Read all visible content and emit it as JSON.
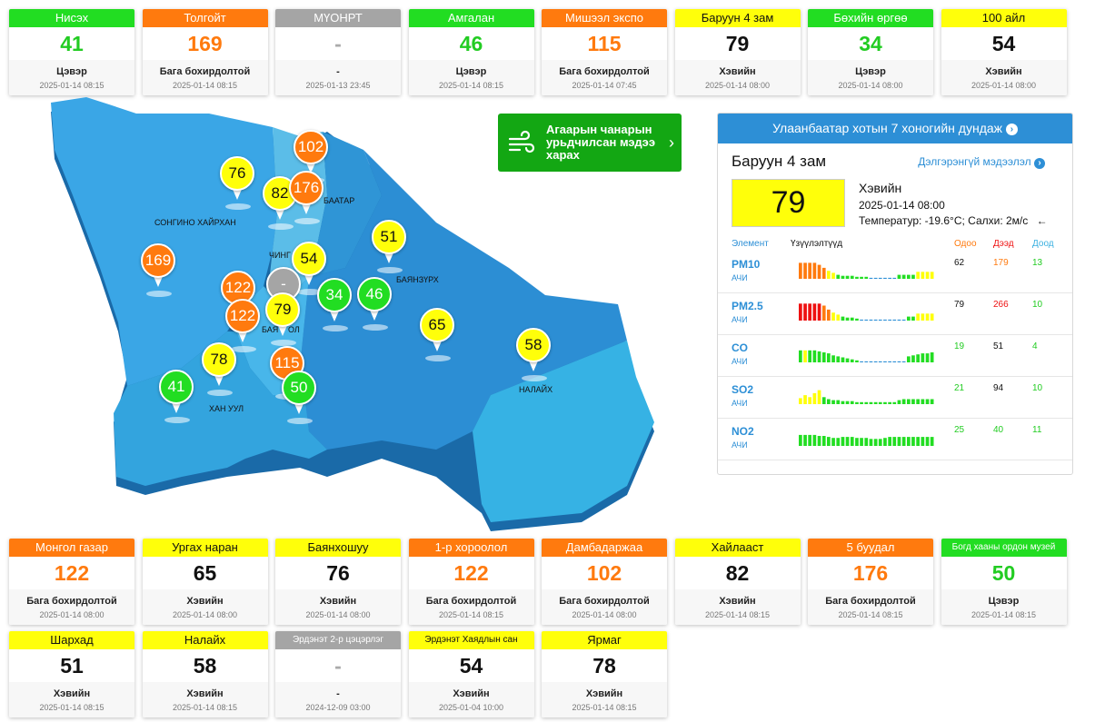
{
  "top_cards": [
    {
      "name": "Нисэх",
      "value": "41",
      "level": "Цэвэр",
      "time": "2025-01-14 08:15",
      "color": "green"
    },
    {
      "name": "Толгойт",
      "value": "169",
      "level": "Бага бохирдолтой",
      "time": "2025-01-14 08:15",
      "color": "orange"
    },
    {
      "name": "МҮОНРТ",
      "value": "-",
      "level": "-",
      "time": "2025-01-13 23:45",
      "color": "gray"
    },
    {
      "name": "Амгалан",
      "value": "46",
      "level": "Цэвэр",
      "time": "2025-01-14 08:15",
      "color": "green"
    },
    {
      "name": "Мишээл экспо",
      "value": "115",
      "level": "Бага бохирдолтой",
      "time": "2025-01-14 07:45",
      "color": "orange"
    },
    {
      "name": "Баруун 4 зам",
      "value": "79",
      "level": "Хэвийн",
      "time": "2025-01-14 08:00",
      "color": "yellow"
    },
    {
      "name": "Бөхийн өргөө",
      "value": "34",
      "level": "Цэвэр",
      "time": "2025-01-14 08:00",
      "color": "green"
    },
    {
      "name": "100 айл",
      "value": "54",
      "level": "Хэвийн",
      "time": "2025-01-14 08:00",
      "color": "yellow"
    }
  ],
  "bottom_cards_row1": [
    {
      "name": "Монгол газар",
      "value": "122",
      "level": "Бага бохирдолтой",
      "time": "2025-01-14 08:00",
      "color": "orange"
    },
    {
      "name": "Ургах наран",
      "value": "65",
      "level": "Хэвийн",
      "time": "2025-01-14 08:00",
      "color": "yellow"
    },
    {
      "name": "Баянхошуу",
      "value": "76",
      "level": "Хэвийн",
      "time": "2025-01-14 08:00",
      "color": "yellow"
    },
    {
      "name": "1-р хороолол",
      "value": "122",
      "level": "Бага бохирдолтой",
      "time": "2025-01-14 08:15",
      "color": "orange"
    },
    {
      "name": "Дамбадаржаа",
      "value": "102",
      "level": "Бага бохирдолтой",
      "time": "2025-01-14 08:00",
      "color": "orange"
    },
    {
      "name": "Хайлааст",
      "value": "82",
      "level": "Хэвийн",
      "time": "2025-01-14 08:15",
      "color": "yellow"
    },
    {
      "name": "5 буудал",
      "value": "176",
      "level": "Бага бохирдолтой",
      "time": "2025-01-14 08:15",
      "color": "orange"
    },
    {
      "name": "Богд хааны ордон музей",
      "value": "50",
      "level": "Цэвэр",
      "time": "2025-01-14 08:15",
      "color": "green"
    }
  ],
  "bottom_cards_row2": [
    {
      "name": "Шархад",
      "value": "51",
      "level": "Хэвийн",
      "time": "2025-01-14 08:15",
      "color": "yellow"
    },
    {
      "name": "Налайх",
      "value": "58",
      "level": "Хэвийн",
      "time": "2025-01-14 08:15",
      "color": "yellow"
    },
    {
      "name": "Эрдэнэт 2-р цэцэрлэг",
      "value": "-",
      "level": "-",
      "time": "2024-12-09 03:00",
      "color": "gray"
    },
    {
      "name": "Эрдэнэт Хаядлын сан",
      "value": "54",
      "level": "Хэвийн",
      "time": "2025-01-04 10:00",
      "color": "yellow"
    },
    {
      "name": "Ярмаг",
      "value": "78",
      "level": "Хэвийн",
      "time": "2025-01-14 08:15",
      "color": "yellow"
    }
  ],
  "map": {
    "districts": [
      "СОНГИНО ХАЙРХАН",
      "ЧИНГ",
      "БААТАР",
      "БАЯНЗҮРХ",
      "НАЛАЙХ",
      "ХАН УУЛ",
      "БАЯ",
      "ОЛ"
    ],
    "pins": [
      {
        "value": "102",
        "color": "orange"
      },
      {
        "value": "76",
        "color": "yellow"
      },
      {
        "value": "82",
        "color": "yellow"
      },
      {
        "value": "176",
        "color": "orange"
      },
      {
        "value": "54",
        "color": "yellow"
      },
      {
        "value": "51",
        "color": "yellow"
      },
      {
        "value": "169",
        "color": "orange"
      },
      {
        "value": "122",
        "color": "orange"
      },
      {
        "value": "-",
        "color": "gray"
      },
      {
        "value": "34",
        "color": "green"
      },
      {
        "value": "46",
        "color": "green"
      },
      {
        "value": "122",
        "color": "orange"
      },
      {
        "value": "79",
        "color": "yellow"
      },
      {
        "value": "65",
        "color": "yellow"
      },
      {
        "value": "58",
        "color": "yellow"
      },
      {
        "value": "78",
        "color": "yellow"
      },
      {
        "value": "115",
        "color": "orange"
      },
      {
        "value": "41",
        "color": "green"
      },
      {
        "value": "50",
        "color": "green"
      }
    ]
  },
  "forecast_button": {
    "label": "Агаарын чанарын урьдчилсан мэдээ харах",
    "icon": "wind-icon"
  },
  "panel": {
    "header": "Улаанбаатар хотын 7 хоногийн дундаж",
    "station": "Баруун 4 зам",
    "details_link": "Дэлгэрэнгүй мэдээлэл",
    "aqi": "79",
    "aqi_color": "#ffff0a",
    "condition": "Хэвийн",
    "time": "2025-01-14 08:00",
    "weather": "Температур: -19.6°C; Салхи: 2м/с",
    "columns": {
      "element": "Элемент",
      "trend": "Үзүүлэлтүүд",
      "now": "Одоо",
      "max": "Дээд",
      "min": "Доод"
    },
    "pollutants": [
      {
        "name": "PM10",
        "sub": "АЧИ",
        "now": "62",
        "max": "179",
        "min": "13",
        "max_color": "#ff7a0e",
        "min_color": "#22cc22",
        "bars": [
          {
            "v": 0.8,
            "c": "#ff7a0e"
          },
          {
            "v": 0.8,
            "c": "#ff7a0e"
          },
          {
            "v": 0.8,
            "c": "#ff7a0e"
          },
          {
            "v": 0.8,
            "c": "#ff7a0e"
          },
          {
            "v": 0.7,
            "c": "#ff7a0e"
          },
          {
            "v": 0.55,
            "c": "#ff7a0e"
          },
          {
            "v": 0.4,
            "c": "#ffff0a"
          },
          {
            "v": 0.3,
            "c": "#ffff0a"
          },
          {
            "v": 0.2,
            "c": "#22dd22"
          },
          {
            "v": 0.15,
            "c": "#22dd22"
          },
          {
            "v": 0.15,
            "c": "#22dd22"
          },
          {
            "v": 0.15,
            "c": "#22dd22"
          },
          {
            "v": 0.1,
            "c": "#22dd22"
          },
          {
            "v": 0.1,
            "c": "#22dd22"
          },
          {
            "v": 0.1,
            "c": "#22dd22"
          },
          {
            "v": 0.05,
            "c": "#2d8fd6"
          },
          {
            "v": 0.05,
            "c": "#2d8fd6"
          },
          {
            "v": 0.05,
            "c": "#2d8fd6"
          },
          {
            "v": 0.05,
            "c": "#2d8fd6"
          },
          {
            "v": 0.05,
            "c": "#2d8fd6"
          },
          {
            "v": 0.05,
            "c": "#2d8fd6"
          },
          {
            "v": 0.2,
            "c": "#22dd22"
          },
          {
            "v": 0.2,
            "c": "#22dd22"
          },
          {
            "v": 0.2,
            "c": "#22dd22"
          },
          {
            "v": 0.2,
            "c": "#22dd22"
          },
          {
            "v": 0.35,
            "c": "#ffff0a"
          },
          {
            "v": 0.35,
            "c": "#ffff0a"
          },
          {
            "v": 0.35,
            "c": "#ffff0a"
          },
          {
            "v": 0.35,
            "c": "#ffff0a"
          }
        ]
      },
      {
        "name": "PM2.5",
        "sub": "АЧИ",
        "now": "79",
        "max": "266",
        "min": "10",
        "max_color": "#ee1111",
        "min_color": "#22cc22",
        "bars": [
          {
            "v": 0.85,
            "c": "#ee1111"
          },
          {
            "v": 0.85,
            "c": "#ee1111"
          },
          {
            "v": 0.85,
            "c": "#ee1111"
          },
          {
            "v": 0.85,
            "c": "#ee1111"
          },
          {
            "v": 0.85,
            "c": "#ee1111"
          },
          {
            "v": 0.75,
            "c": "#ff7a0e"
          },
          {
            "v": 0.55,
            "c": "#ff7a0e"
          },
          {
            "v": 0.4,
            "c": "#ffff0a"
          },
          {
            "v": 0.3,
            "c": "#ffff0a"
          },
          {
            "v": 0.2,
            "c": "#22dd22"
          },
          {
            "v": 0.15,
            "c": "#22dd22"
          },
          {
            "v": 0.15,
            "c": "#22dd22"
          },
          {
            "v": 0.1,
            "c": "#22dd22"
          },
          {
            "v": 0.05,
            "c": "#2d8fd6"
          },
          {
            "v": 0.05,
            "c": "#2d8fd6"
          },
          {
            "v": 0.05,
            "c": "#2d8fd6"
          },
          {
            "v": 0.05,
            "c": "#2d8fd6"
          },
          {
            "v": 0.05,
            "c": "#2d8fd6"
          },
          {
            "v": 0.05,
            "c": "#2d8fd6"
          },
          {
            "v": 0.05,
            "c": "#2d8fd6"
          },
          {
            "v": 0.05,
            "c": "#2d8fd6"
          },
          {
            "v": 0.05,
            "c": "#2d8fd6"
          },
          {
            "v": 0.05,
            "c": "#2d8fd6"
          },
          {
            "v": 0.2,
            "c": "#22dd22"
          },
          {
            "v": 0.2,
            "c": "#22dd22"
          },
          {
            "v": 0.35,
            "c": "#ffff0a"
          },
          {
            "v": 0.35,
            "c": "#ffff0a"
          },
          {
            "v": 0.35,
            "c": "#ffff0a"
          },
          {
            "v": 0.35,
            "c": "#ffff0a"
          }
        ]
      },
      {
        "name": "CO",
        "sub": "АЧИ",
        "now": "19",
        "max": "51",
        "min": "4",
        "now_color": "#22cc22",
        "max_color": "#111",
        "min_color": "#22cc22",
        "bars": [
          {
            "v": 0.6,
            "c": "#22dd22"
          },
          {
            "v": 0.6,
            "c": "#ffff0a"
          },
          {
            "v": 0.6,
            "c": "#22dd22"
          },
          {
            "v": 0.6,
            "c": "#22dd22"
          },
          {
            "v": 0.55,
            "c": "#22dd22"
          },
          {
            "v": 0.5,
            "c": "#22dd22"
          },
          {
            "v": 0.45,
            "c": "#22dd22"
          },
          {
            "v": 0.35,
            "c": "#22dd22"
          },
          {
            "v": 0.3,
            "c": "#22dd22"
          },
          {
            "v": 0.25,
            "c": "#22dd22"
          },
          {
            "v": 0.2,
            "c": "#22dd22"
          },
          {
            "v": 0.15,
            "c": "#22dd22"
          },
          {
            "v": 0.1,
            "c": "#22dd22"
          },
          {
            "v": 0.05,
            "c": "#2d8fd6"
          },
          {
            "v": 0.05,
            "c": "#2d8fd6"
          },
          {
            "v": 0.05,
            "c": "#2d8fd6"
          },
          {
            "v": 0.05,
            "c": "#2d8fd6"
          },
          {
            "v": 0.05,
            "c": "#2d8fd6"
          },
          {
            "v": 0.05,
            "c": "#2d8fd6"
          },
          {
            "v": 0.05,
            "c": "#2d8fd6"
          },
          {
            "v": 0.05,
            "c": "#2d8fd6"
          },
          {
            "v": 0.05,
            "c": "#2d8fd6"
          },
          {
            "v": 0.05,
            "c": "#2d8fd6"
          },
          {
            "v": 0.3,
            "c": "#22dd22"
          },
          {
            "v": 0.35,
            "c": "#22dd22"
          },
          {
            "v": 0.4,
            "c": "#22dd22"
          },
          {
            "v": 0.45,
            "c": "#22dd22"
          },
          {
            "v": 0.45,
            "c": "#22dd22"
          },
          {
            "v": 0.5,
            "c": "#22dd22"
          }
        ]
      },
      {
        "name": "SO2",
        "sub": "АЧИ",
        "now": "21",
        "max": "94",
        "min": "10",
        "now_color": "#22cc22",
        "max_color": "#111",
        "min_color": "#22cc22",
        "bars": [
          {
            "v": 0.3,
            "c": "#ffff0a"
          },
          {
            "v": 0.45,
            "c": "#ffff0a"
          },
          {
            "v": 0.35,
            "c": "#ffff0a"
          },
          {
            "v": 0.55,
            "c": "#ffff0a"
          },
          {
            "v": 0.7,
            "c": "#ffff0a"
          },
          {
            "v": 0.35,
            "c": "#22dd22"
          },
          {
            "v": 0.25,
            "c": "#22dd22"
          },
          {
            "v": 0.2,
            "c": "#22dd22"
          },
          {
            "v": 0.2,
            "c": "#22dd22"
          },
          {
            "v": 0.15,
            "c": "#22dd22"
          },
          {
            "v": 0.15,
            "c": "#22dd22"
          },
          {
            "v": 0.15,
            "c": "#22dd22"
          },
          {
            "v": 0.1,
            "c": "#22dd22"
          },
          {
            "v": 0.1,
            "c": "#22dd22"
          },
          {
            "v": 0.1,
            "c": "#22dd22"
          },
          {
            "v": 0.1,
            "c": "#22dd22"
          },
          {
            "v": 0.1,
            "c": "#22dd22"
          },
          {
            "v": 0.1,
            "c": "#22dd22"
          },
          {
            "v": 0.1,
            "c": "#22dd22"
          },
          {
            "v": 0.1,
            "c": "#22dd22"
          },
          {
            "v": 0.1,
            "c": "#22dd22"
          },
          {
            "v": 0.2,
            "c": "#22dd22"
          },
          {
            "v": 0.25,
            "c": "#22dd22"
          },
          {
            "v": 0.25,
            "c": "#22dd22"
          },
          {
            "v": 0.25,
            "c": "#22dd22"
          },
          {
            "v": 0.25,
            "c": "#22dd22"
          },
          {
            "v": 0.25,
            "c": "#22dd22"
          },
          {
            "v": 0.25,
            "c": "#22dd22"
          },
          {
            "v": 0.25,
            "c": "#22dd22"
          }
        ]
      },
      {
        "name": "NO2",
        "sub": "АЧИ",
        "now": "25",
        "max": "40",
        "min": "11",
        "now_color": "#22cc22",
        "max_color": "#22cc22",
        "min_color": "#22cc22",
        "bars": [
          {
            "v": 0.55,
            "c": "#22dd22"
          },
          {
            "v": 0.55,
            "c": "#22dd22"
          },
          {
            "v": 0.55,
            "c": "#22dd22"
          },
          {
            "v": 0.55,
            "c": "#22dd22"
          },
          {
            "v": 0.5,
            "c": "#22dd22"
          },
          {
            "v": 0.5,
            "c": "#22dd22"
          },
          {
            "v": 0.45,
            "c": "#22dd22"
          },
          {
            "v": 0.4,
            "c": "#22dd22"
          },
          {
            "v": 0.4,
            "c": "#22dd22"
          },
          {
            "v": 0.45,
            "c": "#22dd22"
          },
          {
            "v": 0.45,
            "c": "#22dd22"
          },
          {
            "v": 0.45,
            "c": "#22dd22"
          },
          {
            "v": 0.4,
            "c": "#22dd22"
          },
          {
            "v": 0.4,
            "c": "#22dd22"
          },
          {
            "v": 0.4,
            "c": "#22dd22"
          },
          {
            "v": 0.35,
            "c": "#22dd22"
          },
          {
            "v": 0.35,
            "c": "#22dd22"
          },
          {
            "v": 0.35,
            "c": "#22dd22"
          },
          {
            "v": 0.4,
            "c": "#22dd22"
          },
          {
            "v": 0.45,
            "c": "#22dd22"
          },
          {
            "v": 0.45,
            "c": "#22dd22"
          },
          {
            "v": 0.45,
            "c": "#22dd22"
          },
          {
            "v": 0.45,
            "c": "#22dd22"
          },
          {
            "v": 0.45,
            "c": "#22dd22"
          },
          {
            "v": 0.45,
            "c": "#22dd22"
          },
          {
            "v": 0.45,
            "c": "#22dd22"
          },
          {
            "v": 0.45,
            "c": "#22dd22"
          },
          {
            "v": 0.45,
            "c": "#22dd22"
          },
          {
            "v": 0.45,
            "c": "#22dd22"
          }
        ]
      }
    ]
  }
}
